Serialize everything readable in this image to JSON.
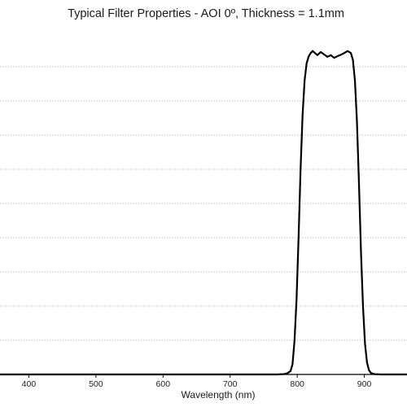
{
  "chart_data": {
    "type": "line",
    "title": "Typical Filter Properties - AOI 0º, Thickness = 1.1mm",
    "xlabel": "Wavelength (nm)",
    "ylabel": "",
    "xlim": [
      300,
      1000
    ],
    "ylim": [
      0,
      100
    ],
    "x_ticks": [
      400,
      500,
      600,
      700,
      800,
      900
    ],
    "y_gridlines": [
      10,
      20,
      30,
      40,
      50,
      60,
      70,
      80,
      90
    ],
    "grid": "horizontal dotted",
    "legend": "none",
    "line_color": "#000000",
    "series": [
      {
        "x": [
          300,
          400,
          500,
          600,
          700,
          770,
          780,
          785,
          790,
          793,
          796,
          799,
          802,
          805,
          808,
          811,
          814,
          817,
          820,
          823,
          826,
          830,
          835,
          840,
          845,
          850,
          855,
          860,
          865,
          870,
          875,
          880,
          883,
          886,
          889,
          892,
          895,
          898,
          901,
          904,
          907,
          910,
          915,
          925,
          950,
          1000
        ],
        "values": [
          0,
          0,
          0,
          0,
          0,
          0,
          0.1,
          0.3,
          1,
          3,
          10,
          22,
          40,
          60,
          76,
          86,
          91,
          93,
          94,
          94.6,
          94.1,
          93.4,
          94.3,
          93.6,
          92.9,
          93.4,
          92.6,
          93.1,
          93.5,
          94,
          94.6,
          94,
          92,
          86,
          74,
          56,
          36,
          20,
          9,
          3.5,
          1.2,
          0.4,
          0.1,
          0,
          0,
          0
        ]
      }
    ]
  }
}
